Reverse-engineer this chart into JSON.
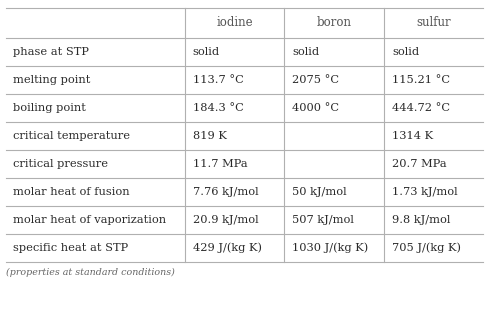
{
  "columns": [
    "",
    "iodine",
    "boron",
    "sulfur"
  ],
  "rows": [
    [
      "phase at STP",
      "solid",
      "solid",
      "solid"
    ],
    [
      "melting point",
      "113.7 °C",
      "2075 °C",
      "115.21 °C"
    ],
    [
      "boiling point",
      "184.3 °C",
      "4000 °C",
      "444.72 °C"
    ],
    [
      "critical temperature",
      "819 K",
      "",
      "1314 K"
    ],
    [
      "critical pressure",
      "11.7 MPa",
      "",
      "20.7 MPa"
    ],
    [
      "molar heat of fusion",
      "7.76 kJ/mol",
      "50 kJ/mol",
      "1.73 kJ/mol"
    ],
    [
      "molar heat of vaporization",
      "20.9 kJ/mol",
      "507 kJ/mol",
      "9.8 kJ/mol"
    ],
    [
      "specific heat at STP",
      "429 J/(kg K)",
      "1030 J/(kg K)",
      "705 J/(kg K)"
    ]
  ],
  "footer": "(properties at standard conditions)",
  "bg_color": "#ffffff",
  "line_color": "#b0b0b0",
  "text_color": "#2a2a2a",
  "header_text_color": "#555555",
  "footer_color": "#666666",
  "fig_width": 4.89,
  "fig_height": 3.27,
  "dpi": 100
}
